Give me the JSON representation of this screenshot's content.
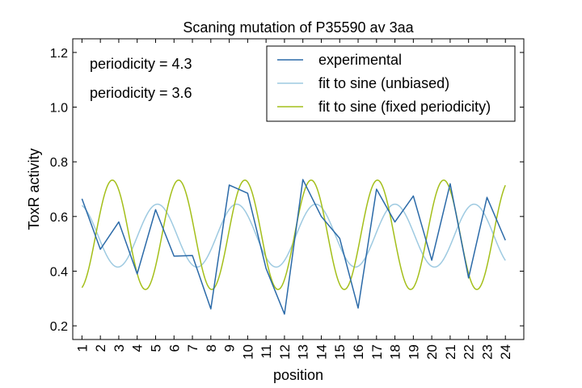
{
  "chart_data": {
    "type": "line",
    "title": "Scaning mutation of P35590 av 3aa",
    "xlabel": "position",
    "ylabel": "ToxR activity",
    "xlim": [
      0.5,
      25
    ],
    "ylim": [
      0.15,
      1.25
    ],
    "x_ticks": [
      "1",
      "2",
      "3",
      "4",
      "5",
      "6",
      "7",
      "8",
      "9",
      "10",
      "11",
      "12",
      "13",
      "14",
      "15",
      "16",
      "17",
      "18",
      "19",
      "20",
      "21",
      "22",
      "23",
      "24"
    ],
    "y_ticks": [
      "0.2",
      "0.4",
      "0.6",
      "0.8",
      "1.0",
      "1.2"
    ],
    "grid": false,
    "legend_position": "top-right",
    "annotations": [
      {
        "text": "periodicity = 4.3",
        "color": "#9ecae1"
      },
      {
        "text": "periodicity = 3.6",
        "color": "#a4bf1a"
      }
    ],
    "series": [
      {
        "name": "experimental",
        "color": "#2b6aa8",
        "kind": "points",
        "x": [
          1,
          2,
          3,
          4,
          5,
          6,
          7,
          8,
          9,
          10,
          11,
          12,
          13,
          14,
          15,
          16,
          17,
          18,
          19,
          20,
          21,
          22,
          23,
          24
        ],
        "y": [
          0.665,
          0.48,
          0.58,
          0.39,
          0.625,
          0.455,
          0.457,
          0.262,
          0.715,
          0.685,
          0.41,
          0.243,
          0.735,
          0.6,
          0.52,
          0.265,
          0.7,
          0.58,
          0.675,
          0.44,
          0.72,
          0.375,
          0.67,
          0.513
        ]
      },
      {
        "name": "fit to sine (unbiased)",
        "color": "#9ecae1",
        "kind": "sine",
        "mean": 0.53,
        "amplitude": 0.115,
        "period": 4.3,
        "phase_peak_x": 5.1,
        "x_range": [
          1,
          24
        ]
      },
      {
        "name": "fit to sine (fixed periodicity)",
        "color": "#a4bf1a",
        "kind": "sine",
        "mean": 0.533,
        "amplitude": 0.2,
        "period": 3.6,
        "phase_peak_x": 2.65,
        "x_range": [
          1,
          24
        ]
      }
    ]
  }
}
